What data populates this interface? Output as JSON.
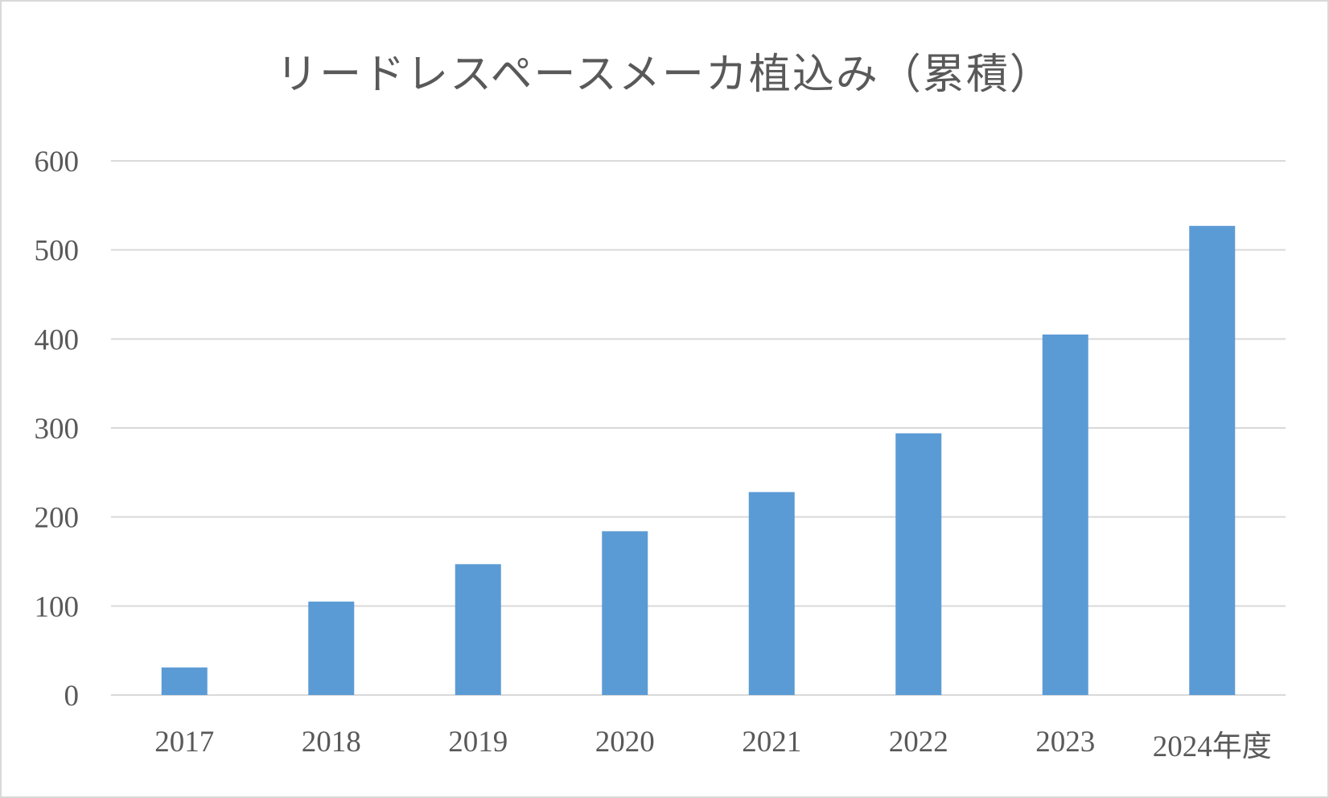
{
  "chart_data": {
    "type": "bar",
    "title": "リードレスペースメーカ植込み（累積）",
    "xlabel": "",
    "ylabel": "",
    "categories": [
      "2017",
      "2018",
      "2019",
      "2020",
      "2021",
      "2022",
      "2023",
      "2024年度"
    ],
    "values": [
      31,
      105,
      147,
      184,
      228,
      294,
      405,
      527
    ],
    "ylim": [
      0,
      600
    ],
    "yticks": [
      0,
      100,
      200,
      300,
      400,
      500,
      600
    ],
    "grid": true,
    "legend": "none",
    "colors": {
      "bar": "#5b9bd5",
      "grid": "#d9d9d9",
      "text": "#595959"
    }
  }
}
